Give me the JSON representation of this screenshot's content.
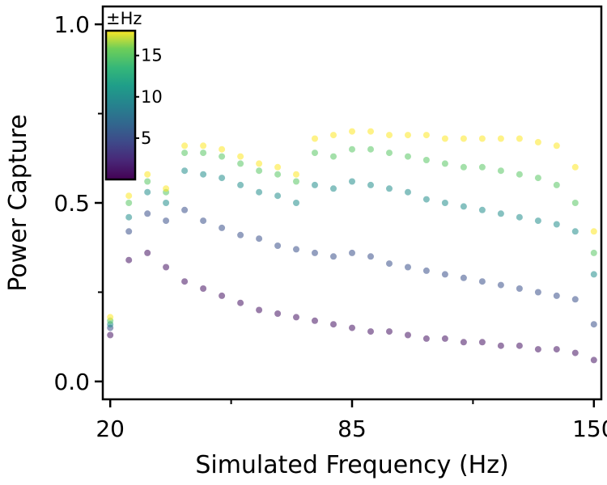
{
  "chart_data": {
    "type": "scatter",
    "title": "",
    "xlabel": "Simulated Frequency (Hz)",
    "ylabel": "Power Capture",
    "xlim": [
      18,
      152
    ],
    "ylim": [
      -0.05,
      1.05
    ],
    "x_ticks": [
      20,
      85,
      150
    ],
    "x_tick_labels": [
      "20",
      "85",
      "150"
    ],
    "x_minor_ticks": [
      52.5,
      117.5
    ],
    "y_ticks": [
      0.0,
      0.5,
      1.0
    ],
    "y_tick_labels": [
      "0.0",
      "0.5",
      "1.0"
    ],
    "y_minor_ticks": [
      0.25,
      0.75
    ],
    "grid": false,
    "colorbar": {
      "title": "±Hz",
      "colormap": "viridis",
      "range": [
        0,
        18
      ],
      "ticks": [
        5,
        10,
        15
      ],
      "tick_labels": [
        "5",
        "10",
        "15"
      ],
      "placement": "top-left"
    },
    "marker_alpha": 0.2,
    "series": [
      {
        "color_value": 1,
        "x": [
          20,
          25,
          30,
          35,
          40,
          45,
          50,
          55,
          60,
          65,
          70,
          75,
          80,
          85,
          90,
          95,
          100,
          105,
          110,
          115,
          120,
          125,
          130,
          135,
          140,
          145,
          150
        ],
        "y": [
          0.13,
          0.34,
          0.36,
          0.32,
          0.28,
          0.26,
          0.24,
          0.22,
          0.2,
          0.19,
          0.18,
          0.17,
          0.16,
          0.15,
          0.14,
          0.14,
          0.13,
          0.12,
          0.12,
          0.11,
          0.11,
          0.1,
          0.1,
          0.09,
          0.09,
          0.08,
          0.06
        ]
      },
      {
        "color_value": 5,
        "x": [
          20,
          25,
          30,
          35,
          40,
          45,
          50,
          55,
          60,
          65,
          70,
          75,
          80,
          85,
          90,
          95,
          100,
          105,
          110,
          115,
          120,
          125,
          130,
          135,
          140,
          145,
          150
        ],
        "y": [
          0.15,
          0.42,
          0.47,
          0.45,
          0.48,
          0.45,
          0.43,
          0.41,
          0.4,
          0.38,
          0.37,
          0.36,
          0.35,
          0.36,
          0.35,
          0.33,
          0.32,
          0.31,
          0.3,
          0.29,
          0.28,
          0.27,
          0.26,
          0.25,
          0.24,
          0.23,
          0.16
        ]
      },
      {
        "color_value": 10,
        "x": [
          20,
          25,
          30,
          35,
          40,
          45,
          50,
          55,
          60,
          65,
          70,
          75,
          80,
          85,
          90,
          95,
          100,
          105,
          110,
          115,
          120,
          125,
          130,
          135,
          140,
          145,
          150
        ],
        "y": [
          0.16,
          0.46,
          0.53,
          0.5,
          0.59,
          0.58,
          0.57,
          0.55,
          0.53,
          0.52,
          0.5,
          0.55,
          0.54,
          0.56,
          0.55,
          0.54,
          0.53,
          0.51,
          0.5,
          0.49,
          0.48,
          0.47,
          0.46,
          0.45,
          0.44,
          0.42,
          0.3
        ]
      },
      {
        "color_value": 15,
        "x": [
          20,
          25,
          30,
          35,
          40,
          45,
          50,
          55,
          60,
          65,
          70,
          75,
          80,
          85,
          90,
          95,
          100,
          105,
          110,
          115,
          120,
          125,
          130,
          135,
          140,
          145,
          150
        ],
        "y": [
          0.17,
          0.5,
          0.56,
          0.53,
          0.64,
          0.64,
          0.63,
          0.61,
          0.59,
          0.58,
          0.56,
          0.64,
          0.63,
          0.65,
          0.65,
          0.64,
          0.63,
          0.62,
          0.61,
          0.6,
          0.6,
          0.59,
          0.58,
          0.57,
          0.55,
          0.5,
          0.36
        ]
      },
      {
        "color_value": 18,
        "x": [
          20,
          25,
          30,
          35,
          40,
          45,
          50,
          55,
          60,
          65,
          70,
          75,
          80,
          85,
          90,
          95,
          100,
          105,
          110,
          115,
          120,
          125,
          130,
          135,
          140,
          145,
          150
        ],
        "y": [
          0.18,
          0.52,
          0.58,
          0.54,
          0.66,
          0.66,
          0.65,
          0.63,
          0.61,
          0.6,
          0.58,
          0.68,
          0.69,
          0.7,
          0.7,
          0.69,
          0.69,
          0.69,
          0.68,
          0.68,
          0.68,
          0.68,
          0.68,
          0.67,
          0.66,
          0.6,
          0.42
        ]
      }
    ]
  }
}
